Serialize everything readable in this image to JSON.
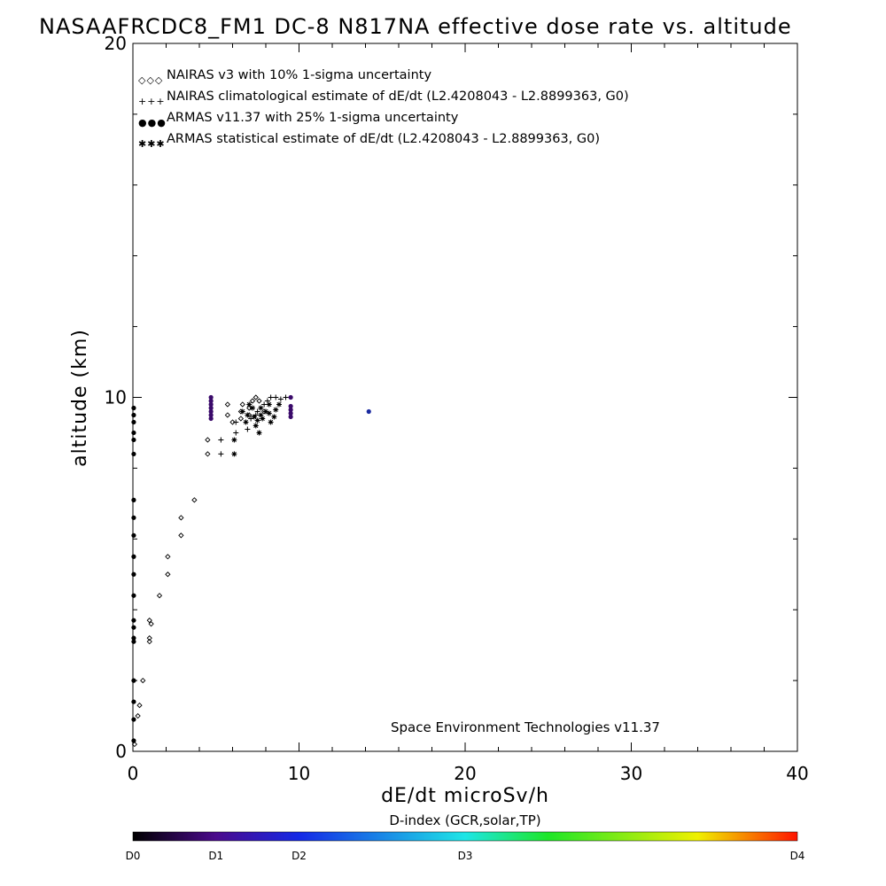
{
  "chart_data": {
    "type": "scatter",
    "title": "NASAAFRCDC8_FM1 DC-8   N817NA effective dose rate vs. altitude",
    "xlabel": "dE/dt microSv/h",
    "ylabel": "altitude (km)",
    "xlim": [
      0,
      40
    ],
    "ylim": [
      0,
      20
    ],
    "x_ticks": [
      0,
      10,
      20,
      30,
      40
    ],
    "y_ticks": [
      0,
      10,
      20
    ],
    "grid": false,
    "legend_position": "top-left",
    "legend": [
      "NAIRAS v3 with 10% 1-sigma uncertainty",
      "NAIRAS climatological estimate of dE/dt (L2.4208043 - L2.8899363, G0)",
      "ARMAS v11.37 with 25% 1-sigma uncertainty",
      "ARMAS statistical estimate of dE/dt (L2.4208043 - L2.8899363, G0)"
    ],
    "legend_symbols": [
      "◇◇◇",
      "+++",
      "●●●",
      "✱✱✱"
    ],
    "annotation": "Space Environment Technologies v11.37",
    "colorbar": {
      "title": "D-index (GCR,solar,TP)",
      "labels": [
        "D0",
        "D1",
        "D2",
        "D3",
        "D4"
      ],
      "positions": [
        0,
        0.125,
        0.25,
        0.5,
        1.0
      ]
    },
    "series": [
      {
        "marker": "diamond",
        "color": "#000000",
        "points": [
          [
            0.1,
            0.2
          ],
          [
            0.3,
            1.0
          ],
          [
            0.4,
            1.3
          ],
          [
            0.6,
            2.0
          ],
          [
            1.0,
            3.1
          ],
          [
            1.0,
            3.2
          ],
          [
            1.1,
            3.6
          ],
          [
            1.0,
            3.7
          ],
          [
            1.6,
            4.4
          ],
          [
            2.1,
            5.0
          ],
          [
            2.1,
            5.5
          ],
          [
            2.9,
            6.1
          ],
          [
            2.9,
            6.6
          ],
          [
            3.7,
            7.1
          ],
          [
            4.5,
            8.4
          ],
          [
            4.5,
            8.8
          ],
          [
            5.7,
            9.5
          ],
          [
            5.7,
            9.8
          ],
          [
            6.0,
            9.3
          ],
          [
            6.5,
            9.4
          ],
          [
            6.5,
            9.6
          ],
          [
            6.6,
            9.8
          ],
          [
            7.0,
            9.5
          ],
          [
            7.0,
            9.7
          ],
          [
            7.2,
            9.9
          ],
          [
            7.4,
            10.0
          ],
          [
            7.6,
            9.9
          ],
          [
            7.9,
            9.6
          ]
        ]
      },
      {
        "marker": "plus",
        "color": "#000000",
        "points": [
          [
            5.3,
            8.4
          ],
          [
            5.3,
            8.8
          ],
          [
            6.2,
            9.0
          ],
          [
            6.2,
            9.3
          ],
          [
            6.9,
            9.1
          ],
          [
            7.1,
            9.4
          ],
          [
            7.4,
            9.5
          ],
          [
            7.5,
            9.6
          ],
          [
            7.9,
            9.8
          ],
          [
            8.1,
            9.9
          ],
          [
            8.3,
            10.0
          ],
          [
            8.6,
            10.0
          ],
          [
            8.9,
            9.95
          ],
          [
            9.2,
            10.0
          ]
        ]
      },
      {
        "marker": "star",
        "color": "#000000",
        "points": [
          [
            6.1,
            8.4
          ],
          [
            6.1,
            8.8
          ],
          [
            7.4,
            9.2
          ],
          [
            7.6,
            9.0
          ],
          [
            6.6,
            9.6
          ],
          [
            6.8,
            9.3
          ],
          [
            6.9,
            9.5
          ],
          [
            7.0,
            9.8
          ],
          [
            7.2,
            9.7
          ],
          [
            7.3,
            9.45
          ],
          [
            7.5,
            9.35
          ],
          [
            7.7,
            9.5
          ],
          [
            7.7,
            9.7
          ],
          [
            7.8,
            9.4
          ],
          [
            8.0,
            9.6
          ],
          [
            8.2,
            9.8
          ],
          [
            8.2,
            9.55
          ],
          [
            8.3,
            9.3
          ],
          [
            8.5,
            9.45
          ],
          [
            8.6,
            9.65
          ],
          [
            8.8,
            9.8
          ]
        ]
      },
      {
        "marker": "dot",
        "points": [
          [
            0.05,
            0.3,
            "#000000"
          ],
          [
            0.05,
            0.9,
            "#000000"
          ],
          [
            0.05,
            1.4,
            "#000000"
          ],
          [
            0.05,
            2.0,
            "#000000"
          ],
          [
            0.05,
            3.1,
            "#000000"
          ],
          [
            0.05,
            3.2,
            "#000000"
          ],
          [
            0.05,
            3.5,
            "#000000"
          ],
          [
            0.05,
            3.7,
            "#000000"
          ],
          [
            0.05,
            4.4,
            "#000000"
          ],
          [
            0.05,
            5.0,
            "#000000"
          ],
          [
            0.05,
            5.5,
            "#000000"
          ],
          [
            0.05,
            6.1,
            "#000000"
          ],
          [
            0.05,
            6.6,
            "#000000"
          ],
          [
            0.05,
            7.1,
            "#000000"
          ],
          [
            0.05,
            8.4,
            "#000000"
          ],
          [
            0.05,
            8.8,
            "#000000"
          ],
          [
            0.05,
            9.0,
            "#000000"
          ],
          [
            0.05,
            9.3,
            "#000000"
          ],
          [
            0.05,
            9.5,
            "#000000"
          ],
          [
            0.05,
            9.7,
            "#000000"
          ],
          [
            4.7,
            9.4,
            "#3a0a6a"
          ],
          [
            4.7,
            9.5,
            "#3a0a6a"
          ],
          [
            4.7,
            9.6,
            "#3a0a6a"
          ],
          [
            4.7,
            9.7,
            "#3a0a6a"
          ],
          [
            4.7,
            9.8,
            "#3a0a6a"
          ],
          [
            4.7,
            9.9,
            "#3a0a6a"
          ],
          [
            4.7,
            10.0,
            "#3a0a6a"
          ],
          [
            9.5,
            9.45,
            "#3a0a6a"
          ],
          [
            9.5,
            9.55,
            "#3a0a6a"
          ],
          [
            9.5,
            9.65,
            "#3a0a6a"
          ],
          [
            9.5,
            9.75,
            "#3a0a6a"
          ],
          [
            9.5,
            10.0,
            "#3a0a6a"
          ],
          [
            14.2,
            9.6,
            "#1a2aa0"
          ]
        ]
      }
    ]
  }
}
